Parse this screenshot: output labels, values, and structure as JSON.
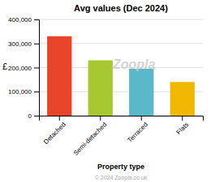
{
  "chart_data": {
    "type": "bar",
    "title": "Avg values (Dec 2024)",
    "categories": [
      "Detached",
      "Semi-detached",
      "Terraced",
      "Flats"
    ],
    "values": [
      330000,
      230000,
      195000,
      140000
    ],
    "colors": [
      "#E8442A",
      "#A8C832",
      "#5BB8C8",
      "#F0B800"
    ],
    "y_label": "£",
    "x_label": "Property type",
    "ylim": [
      0,
      400000
    ],
    "yticks": [
      0,
      {
        "value": 100000,
        "label": "100,000"
      },
      {
        "value": 200000,
        "label": "200,000"
      },
      {
        "value": 300000,
        "label": "300,000"
      },
      {
        "value": 400000,
        "label": "400,000"
      }
    ],
    "grid": true,
    "annotations": [
      "Zoopla",
      "© 2024 Zoopla.co.uk"
    ]
  }
}
